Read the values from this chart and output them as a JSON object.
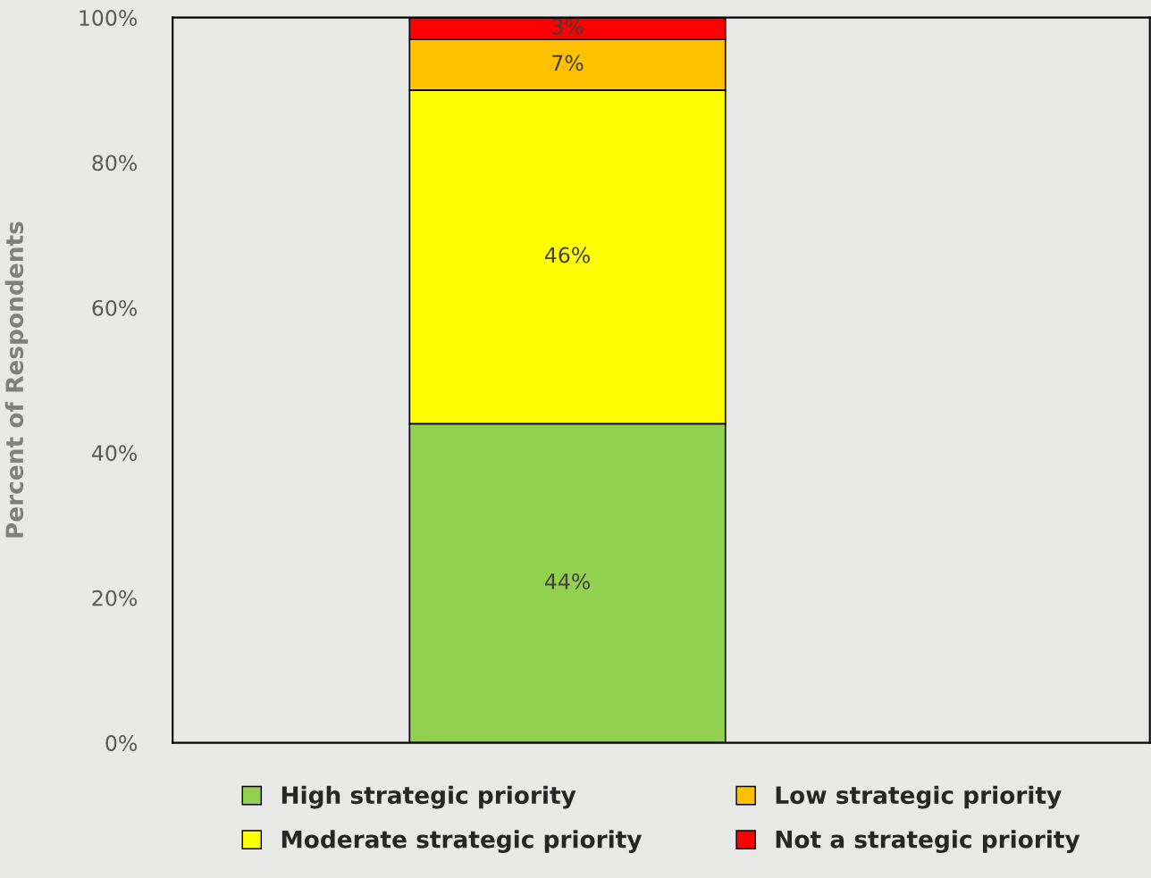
{
  "chart_data": {
    "type": "bar",
    "stacked": true,
    "ylabel": "Percent of Respondents",
    "categories": [
      null
    ],
    "series": [
      {
        "name": "High strategic priority",
        "color": "#92d050",
        "values": [
          44
        ],
        "value_labels": [
          "44%"
        ]
      },
      {
        "name": "Moderate strategic priority",
        "color": "#ffff00",
        "values": [
          46
        ],
        "value_labels": [
          "46%"
        ]
      },
      {
        "name": "Low strategic priority",
        "color": "#ffc000",
        "values": [
          7
        ],
        "value_labels": [
          "7%"
        ]
      },
      {
        "name": "Not a strategic priority",
        "color": "#ff0000",
        "values": [
          3
        ],
        "value_labels": [
          "3%"
        ]
      }
    ],
    "ylim": [
      0,
      100
    ],
    "yticks": [
      {
        "value": 0,
        "label": "0%"
      },
      {
        "value": 20,
        "label": "20%"
      },
      {
        "value": 40,
        "label": "40%"
      },
      {
        "value": 60,
        "label": "60%"
      },
      {
        "value": 80,
        "label": "80%"
      },
      {
        "value": 100,
        "label": "100%"
      }
    ],
    "grid": false,
    "legend": "bottom",
    "tick_labels": "y"
  }
}
